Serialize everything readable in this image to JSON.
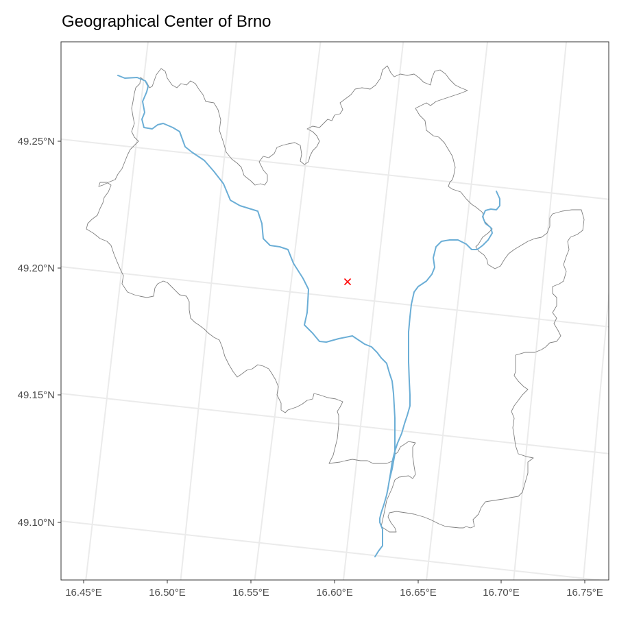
{
  "title": "Geographical Center of Brno",
  "map": {
    "lat_ticks": [
      "49.25°N",
      "49.20°N",
      "49.15°N",
      "49.10°N"
    ],
    "lon_ticks": [
      "16.45°E",
      "16.50°E",
      "16.55°E",
      "16.60°E",
      "16.65°E",
      "16.70°E",
      "16.75°E"
    ],
    "layers": [
      {
        "name": "city-boundary",
        "color": "#808080"
      },
      {
        "name": "rivers",
        "color": "#6baed6"
      },
      {
        "name": "geographical-center-marker",
        "symbol": "x",
        "color": "#ff0000"
      }
    ],
    "grid": true
  }
}
